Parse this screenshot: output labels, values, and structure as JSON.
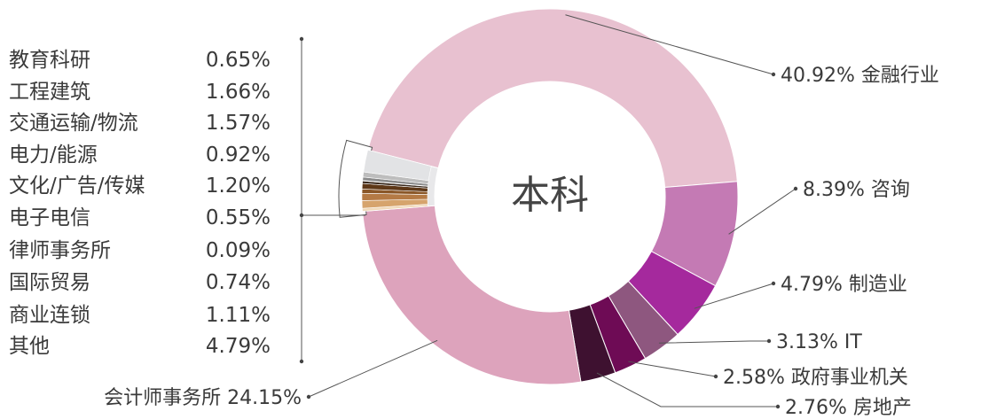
{
  "chart_data": {
    "type": "donut",
    "title": "本科",
    "slices": [
      {
        "label": "金融行业",
        "value": 40.92,
        "value_text": "40.92%",
        "color": "#E8C1D0"
      },
      {
        "label": "咨询",
        "value": 8.39,
        "value_text": "8.39%",
        "color": "#C47AB4"
      },
      {
        "label": "制造业",
        "value": 4.79,
        "value_text": "4.79%",
        "color": "#A5299D"
      },
      {
        "label": "IT",
        "value": 3.13,
        "value_text": "3.13%",
        "color": "#8E577F"
      },
      {
        "label": "政府事业机关",
        "value": 2.58,
        "value_text": "2.58%",
        "color": "#6E0B55"
      },
      {
        "label": "房地产",
        "value": 2.76,
        "value_text": "2.76%",
        "color": "#3E1130"
      },
      {
        "label": "会计师事务所",
        "value": 24.15,
        "value_text": "24.15%",
        "color": "#DDA3BC"
      },
      {
        "label": "其他",
        "value": 4.79,
        "value_text": "4.79%",
        "color": "#E8E8EA"
      }
    ],
    "other_breakdown": [
      {
        "label": "教育科研",
        "value": 0.65,
        "value_text": "0.65%",
        "color": "#F0D9B9"
      },
      {
        "label": "工程建筑",
        "value": 1.66,
        "value_text": "1.66%",
        "color": "#D6A46D"
      },
      {
        "label": "交通运输/物流",
        "value": 1.57,
        "value_text": "1.57%",
        "color": "#B47A45"
      },
      {
        "label": "电力/能源",
        "value": 0.92,
        "value_text": "0.92%",
        "color": "#8A5728"
      },
      {
        "label": "文化/广告/传媒",
        "value": 1.2,
        "value_text": "1.20%",
        "color": "#5E3818"
      },
      {
        "label": "电子电信",
        "value": 0.55,
        "value_text": "0.55%",
        "color": "#3A2A1E"
      },
      {
        "label": "律师事务所",
        "value": 0.09,
        "value_text": "0.09%",
        "color": "#555555"
      },
      {
        "label": "国际贸易",
        "value": 0.74,
        "value_text": "0.74%",
        "color": "#8C8C8C"
      },
      {
        "label": "商业连锁",
        "value": 1.11,
        "value_text": "1.11%",
        "color": "#BDBDBD"
      },
      {
        "label": "其他",
        "value": 4.79,
        "value_text": "4.79%",
        "color": "#E2E3E5"
      }
    ]
  }
}
